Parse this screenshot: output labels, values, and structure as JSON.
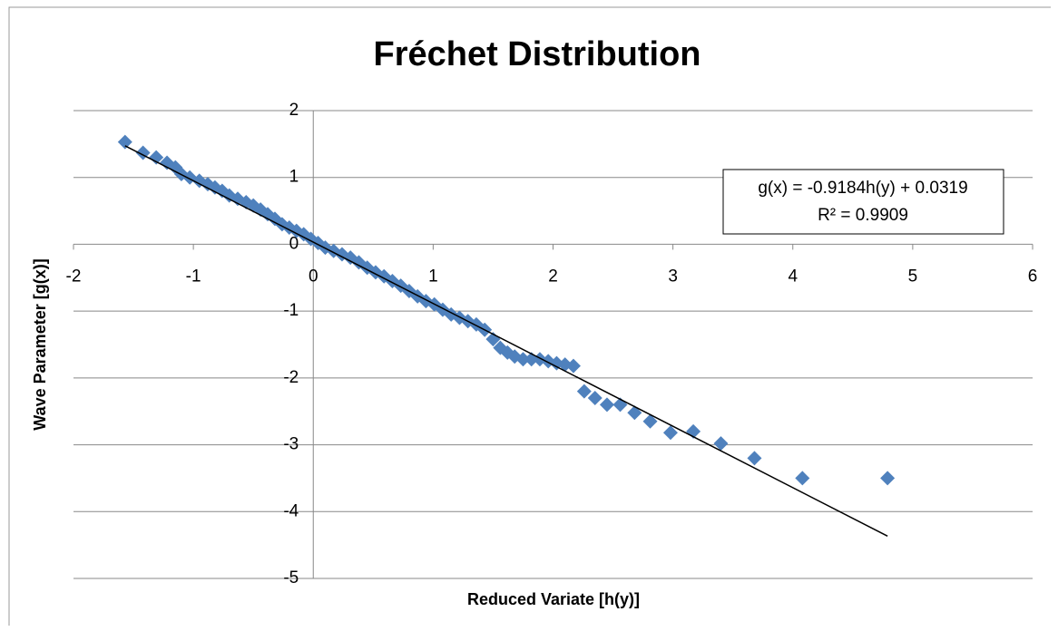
{
  "chart_data": {
    "type": "scatter",
    "title": "Fréchet Distribution",
    "x_label": "Reduced Variate [h(y)]",
    "y_label": "Wave Parameter [g(x)]",
    "color": "#4f81bd",
    "x": [
      -1.57,
      -1.42,
      -1.31,
      -1.22,
      -1.15,
      -1.1,
      -1.03,
      -0.95,
      -0.88,
      -0.82,
      -0.76,
      -0.7,
      -0.63,
      -0.56,
      -0.5,
      -0.44,
      -0.38,
      -0.32,
      -0.26,
      -0.2,
      -0.14,
      -0.08,
      -0.02,
      0.04,
      0.1,
      0.17,
      0.24,
      0.31,
      0.38,
      0.45,
      0.52,
      0.59,
      0.66,
      0.73,
      0.8,
      0.87,
      0.94,
      1.01,
      1.08,
      1.15,
      1.22,
      1.29,
      1.36,
      1.43,
      1.5,
      1.56,
      1.62,
      1.68,
      1.75,
      1.82,
      1.89,
      1.96,
      2.03,
      2.1,
      2.17,
      2.26,
      2.35,
      2.45,
      2.56,
      2.68,
      2.81,
      2.98,
      3.17,
      3.4,
      3.68,
      4.08,
      4.79
    ],
    "values": [
      1.53,
      1.37,
      1.3,
      1.22,
      1.15,
      1.05,
      1.0,
      0.95,
      0.9,
      0.85,
      0.8,
      0.73,
      0.68,
      0.63,
      0.58,
      0.52,
      0.45,
      0.38,
      0.3,
      0.25,
      0.2,
      0.15,
      0.08,
      0.02,
      -0.05,
      -0.1,
      -0.15,
      -0.2,
      -0.27,
      -0.35,
      -0.42,
      -0.48,
      -0.55,
      -0.62,
      -0.7,
      -0.78,
      -0.85,
      -0.9,
      -0.98,
      -1.05,
      -1.1,
      -1.15,
      -1.2,
      -1.28,
      -1.42,
      -1.55,
      -1.62,
      -1.68,
      -1.72,
      -1.72,
      -1.72,
      -1.75,
      -1.78,
      -1.8,
      -1.82,
      -2.2,
      -2.3,
      -2.4,
      -2.4,
      -2.52,
      -2.65,
      -2.82,
      -2.8,
      -2.98,
      -3.2,
      -3.5,
      -3.5
    ],
    "trendline": {
      "x": [
        -1.57,
        4.79
      ],
      "values": [
        1.474,
        -4.367
      ],
      "color": "#000000"
    },
    "annotation": [
      "g(x) = -0.9184h(y) + 0.0319",
      "R² = 0.9909"
    ],
    "xlim": [
      -2,
      6
    ],
    "xticks": [
      -2,
      -1,
      0,
      1,
      2,
      3,
      4,
      5,
      6
    ],
    "ylim": [
      -5,
      2
    ],
    "yticks": [
      -5,
      -4,
      -3,
      -2,
      -1,
      0,
      1,
      2
    ],
    "grid": true
  }
}
